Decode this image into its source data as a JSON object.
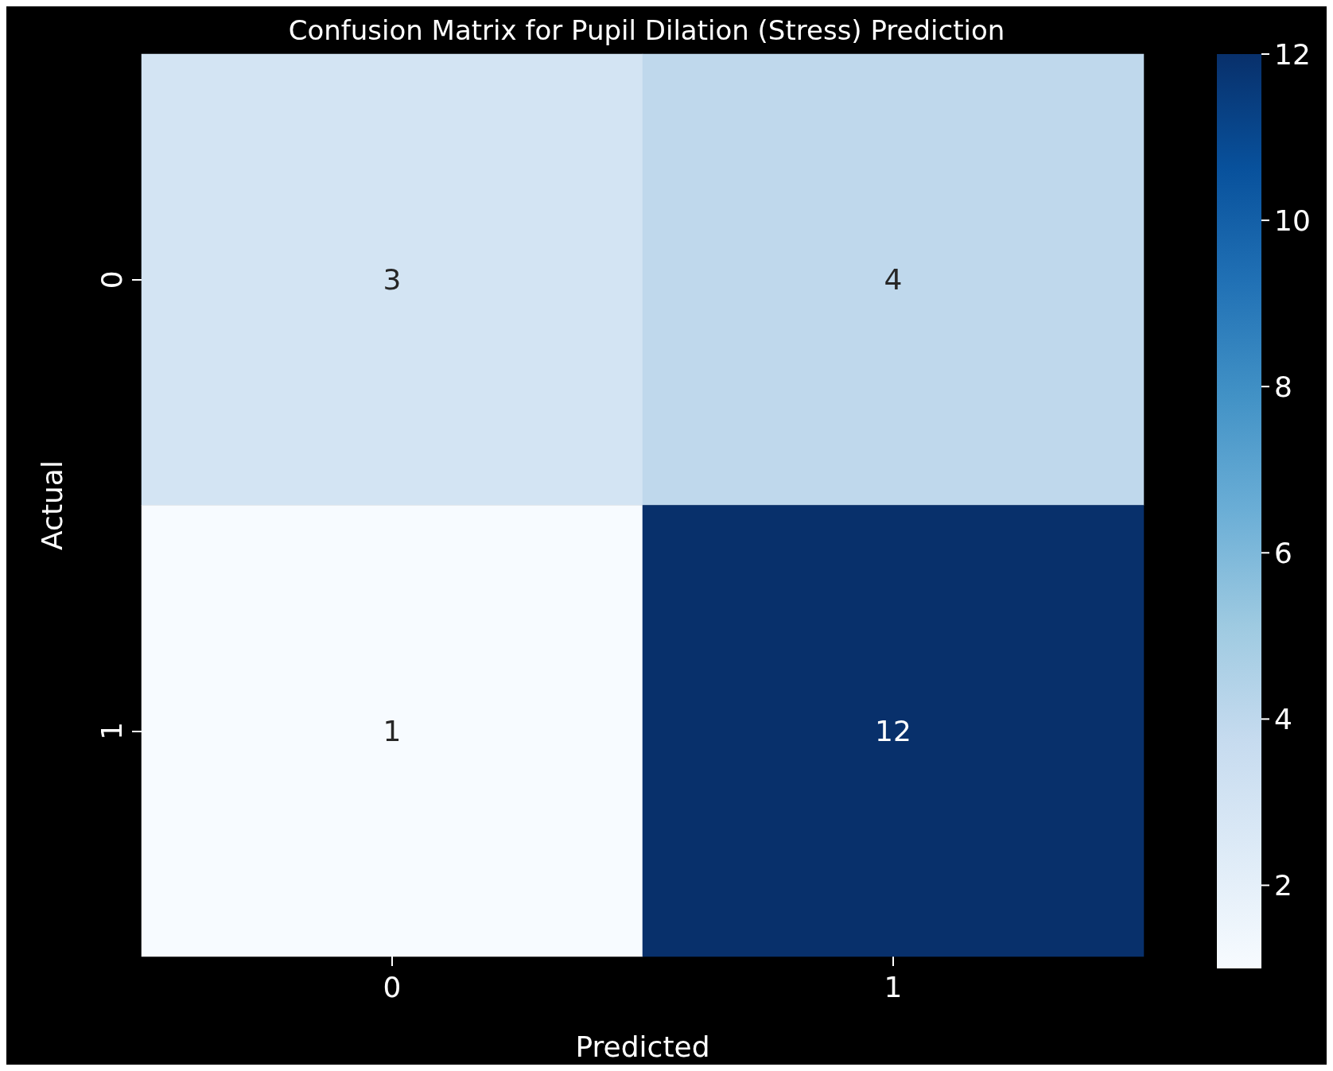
{
  "chart_data": {
    "type": "heatmap",
    "title": "Confusion Matrix for Pupil Dilation (Stress) Prediction",
    "xlabel": "Predicted",
    "ylabel": "Actual",
    "categories": [
      "0",
      "1"
    ],
    "y_categories": [
      "0",
      "1"
    ],
    "cells": [
      [
        3,
        4
      ],
      [
        1,
        12
      ]
    ],
    "data_labels": true,
    "clim": [
      1,
      12
    ],
    "cticks": [
      2,
      4,
      6,
      8,
      10,
      12
    ]
  }
}
